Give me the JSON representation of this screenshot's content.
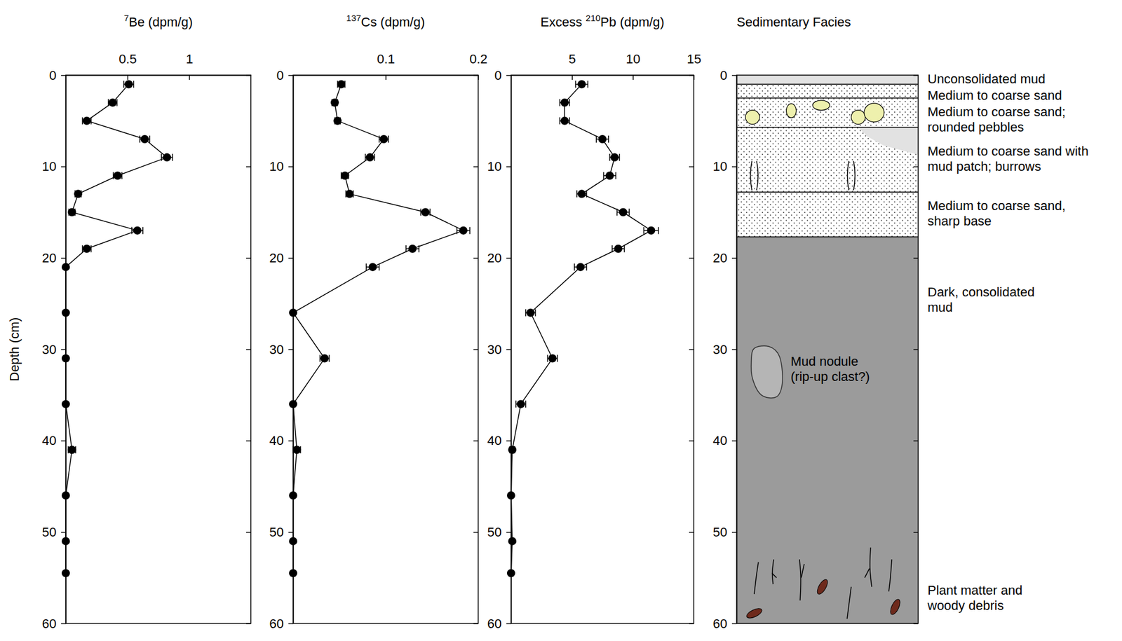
{
  "chart_data": [
    {
      "type": "profile",
      "xlabel": [
        {
          "text": "7",
          "superscript": true
        },
        {
          "text": "Be (dpm/g)"
        }
      ],
      "ylabel": "Depth (cm)",
      "xlim": [
        0,
        1.5
      ],
      "xticks": [
        0.5,
        1
      ],
      "ylim": [
        0,
        60
      ],
      "yticks": [
        0,
        10,
        20,
        30,
        40,
        50,
        60
      ],
      "depth": [
        1,
        3,
        5,
        7,
        9,
        11,
        13,
        15,
        17,
        19,
        21,
        26,
        31,
        36,
        41,
        46,
        51,
        54.5
      ],
      "values": [
        0.51,
        0.38,
        0.17,
        0.64,
        0.82,
        0.42,
        0.1,
        0.05,
        0.58,
        0.17,
        0,
        0,
        0,
        0,
        0.05,
        0,
        0,
        0
      ],
      "errors": [
        0.04,
        0.035,
        0.035,
        0.04,
        0.045,
        0.035,
        0.025,
        0.025,
        0.045,
        0.035,
        0,
        0,
        0,
        0,
        0.03,
        0,
        0,
        0
      ],
      "color": "#000000",
      "marker": "circle",
      "line_style": "solid"
    },
    {
      "type": "profile",
      "xlabel": [
        {
          "text": "137",
          "superscript": true
        },
        {
          "text": "Cs (dpm/g)"
        }
      ],
      "xlim": [
        0,
        0.2
      ],
      "xticks": [
        0.1,
        0.2
      ],
      "ylim": [
        0,
        60
      ],
      "yticks": [
        0,
        10,
        20,
        30,
        40,
        50,
        60
      ],
      "depth": [
        1,
        3,
        5,
        7,
        9,
        11,
        13,
        15,
        17,
        19,
        21,
        26,
        31,
        36,
        41,
        46,
        51,
        54.5
      ],
      "values": [
        0.052,
        0.045,
        0.048,
        0.098,
        0.083,
        0.056,
        0.061,
        0.143,
        0.184,
        0.129,
        0.086,
        0,
        0.034,
        0,
        0.004,
        0,
        0,
        0
      ],
      "errors": [
        0.004,
        0.003,
        0.003,
        0.005,
        0.005,
        0.004,
        0.004,
        0.005,
        0.007,
        0.007,
        0.007,
        0,
        0.005,
        0,
        0.004,
        0,
        0,
        0
      ],
      "color": "#000000",
      "marker": "circle",
      "line_style": "solid"
    },
    {
      "type": "profile",
      "xlabel": [
        {
          "text": "Excess "
        },
        {
          "text": "210",
          "superscript": true
        },
        {
          "text": "Pb (dpm/g)"
        }
      ],
      "xlim": [
        0,
        15
      ],
      "xticks": [
        5,
        10,
        15
      ],
      "ylim": [
        0,
        60
      ],
      "yticks": [
        0,
        10,
        20,
        30,
        40,
        50,
        60
      ],
      "depth": [
        1,
        3,
        5,
        7,
        9,
        11,
        13,
        15,
        17,
        19,
        21,
        26,
        31,
        36,
        41,
        46,
        51,
        54.5
      ],
      "values": [
        5.8,
        4.4,
        4.4,
        7.5,
        8.5,
        8.1,
        5.8,
        9.2,
        11.5,
        8.8,
        5.7,
        1.6,
        3.4,
        0.8,
        0.1,
        0,
        0.1,
        0
      ],
      "errors": [
        0.5,
        0.4,
        0.4,
        0.5,
        0.4,
        0.5,
        0.4,
        0.5,
        0.6,
        0.5,
        0.5,
        0.4,
        0.4,
        0.4,
        0.2,
        0,
        0.1,
        0.1
      ],
      "color": "#000000",
      "marker": "circle",
      "line_style": "solid"
    },
    {
      "type": "facies",
      "title": "Sedimentary Facies",
      "ylim": [
        0,
        60
      ],
      "yticks": [
        0,
        10,
        20,
        30,
        40,
        50,
        60
      ],
      "layers": [
        {
          "top": 0,
          "base": 1,
          "color": "#e2e2e2",
          "label": [
            "Unconsolidated mud"
          ]
        },
        {
          "top": 1,
          "base": 2.5,
          "color": "#ffffff",
          "marker": "dots",
          "label": [
            "Medium to coarse sand"
          ]
        },
        {
          "top": 2.5,
          "base": 5.7,
          "color": "#ffffff",
          "marker": "dots",
          "label": [
            "Medium to coarse sand;",
            "rounded pebbles"
          ]
        },
        {
          "top": 5.7,
          "base": 12.8,
          "color": "#ffffff",
          "marker": "dots",
          "label": [
            "Medium to coarse sand with",
            "mud patch; burrows"
          ]
        },
        {
          "top": 12.8,
          "base": 17.7,
          "color": "#ffffff",
          "marker": "dots",
          "label": [
            "Medium to coarse sand,",
            "sharp base"
          ]
        },
        {
          "top": 17.7,
          "base": 60,
          "color": "#9b9b9b",
          "label": [
            "Dark, consolidated",
            "mud"
          ]
        }
      ],
      "annotations": [
        {
          "text": [
            "Mud nodule",
            "(rip-up clast?)"
          ]
        },
        {
          "text": [
            "Plant matter and",
            "woody debris"
          ]
        }
      ]
    }
  ]
}
